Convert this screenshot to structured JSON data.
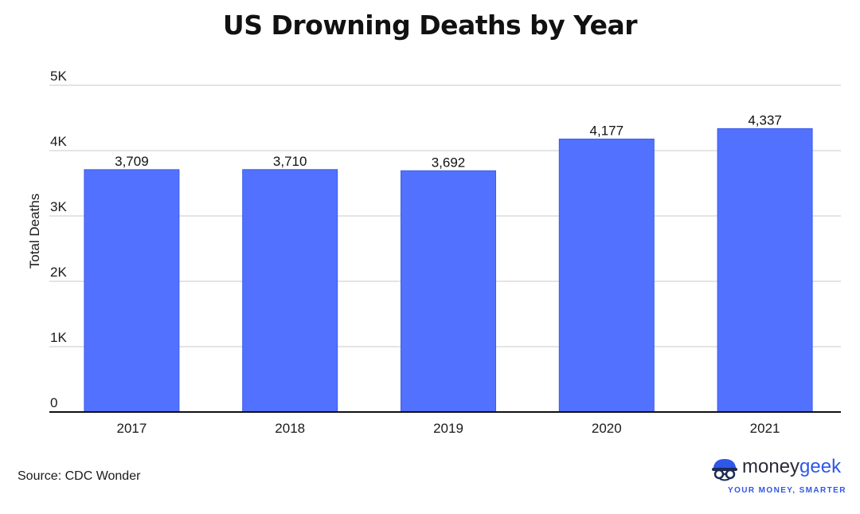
{
  "chart_data": {
    "type": "bar",
    "title": "US Drowning Deaths by Year",
    "ylabel": "Total Deaths",
    "xlabel": "",
    "categories": [
      "2017",
      "2018",
      "2019",
      "2020",
      "2021"
    ],
    "values": [
      3709,
      3710,
      3692,
      4177,
      4337
    ],
    "value_labels": [
      "3,709",
      "3,710",
      "3,692",
      "4,177",
      "4,337"
    ],
    "ylim": [
      0,
      5000
    ],
    "yticks": [
      0,
      1000,
      2000,
      3000,
      4000,
      5000
    ],
    "ytick_labels": [
      "0",
      "1K",
      "2K",
      "3K",
      "4K",
      "5K"
    ],
    "grid": true,
    "bar_color": "#5271ff",
    "bar_edge_color": "#3d5ce8"
  },
  "source": "Source: CDC Wonder",
  "brand": {
    "name_part1": "money",
    "name_part2": "geek",
    "tagline": "YOUR MONEY, SMARTER",
    "icon": "moneygeek-logo-icon",
    "accent_color": "#2f57e8"
  }
}
